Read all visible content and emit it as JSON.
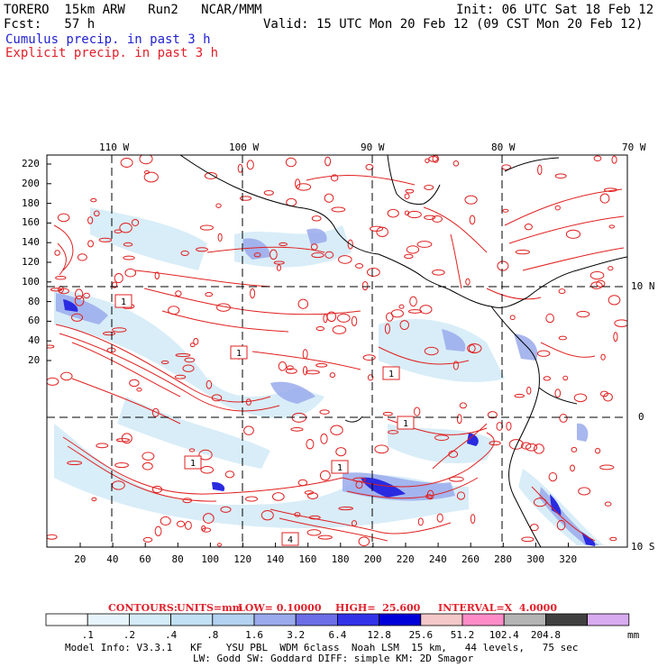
{
  "header": {
    "model_title": "TORERO  15km ARW   Run2   NCAR/MMM",
    "init": "Init: 06 UTC Sat 18 Feb 12",
    "forecast": "Fcst:   57 h",
    "valid": "Valid: 15 UTC Mon 20 Feb 12 (09 CST Mon 20 Feb 12)",
    "field1": "Cumulus precip. in past 3 h",
    "field2": "Explicit precip. in past 3 h"
  },
  "map": {
    "top_lon_labels": [
      "110 W",
      "100 W",
      "90 W",
      "80 W",
      "70 W"
    ],
    "right_lat_labels": [
      "10 N",
      "0",
      "10 S"
    ],
    "y_ticks": [
      "220",
      "200",
      "180",
      "160",
      "140",
      "120",
      "100",
      "80",
      "60",
      "40",
      "20"
    ],
    "x_ticks": [
      "20",
      "40",
      "60",
      "80",
      "100",
      "120",
      "140",
      "160",
      "180",
      "200",
      "220",
      "240",
      "260",
      "280",
      "300",
      "320"
    ],
    "contour_labels": [
      "1",
      "1",
      "1",
      "1",
      "1",
      "1",
      "4"
    ]
  },
  "contours_info": {
    "label": "CONTOURS:",
    "units": "UNITS=mm",
    "low": "LOW= 0.10000",
    "high": "HIGH=  25.600",
    "interval": "INTERVAL=X  4.0000"
  },
  "colorbar": {
    "values": [
      ".1",
      ".2",
      ".4",
      ".8",
      "1.6",
      "3.2",
      "6.4",
      "12.8",
      "25.6",
      "51.2",
      "102.4",
      "204.8"
    ],
    "unit": "mm",
    "colors": [
      "#ffffff",
      "#e8f4fb",
      "#d4ecf8",
      "#c2e0f4",
      "#b3d1f0",
      "#9aaaec",
      "#6b6ee6",
      "#3232e8",
      "#0000d8",
      "#f4c8c8",
      "#ff8cc8",
      "#b4b4b4",
      "#404040",
      "#d8aaf0"
    ]
  },
  "footer": {
    "line1": "Model Info: V3.3.1   KF    YSU PBL  WDM 6class  Noah LSM  15 km,   44 levels,   75 sec",
    "line2": "LW: Godd SW: Goddard DIFF: simple KM: 2D Smagor"
  }
}
